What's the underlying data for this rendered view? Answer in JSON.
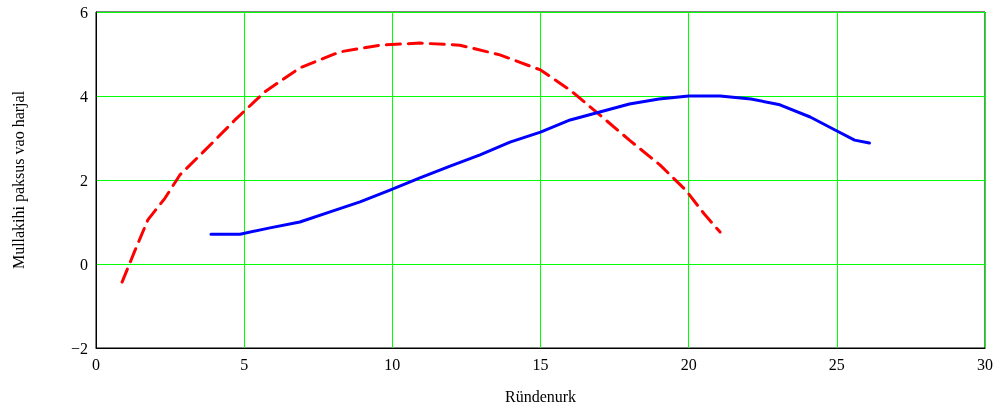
{
  "chart_data": {
    "type": "line",
    "xlabel": "Ründenurk",
    "ylabel": "Mullakihi paksus vao harjal",
    "xlim": [
      0,
      30
    ],
    "xticks": [
      0,
      5,
      10,
      15,
      20,
      25,
      30
    ],
    "ylim": [
      -2,
      6
    ],
    "yticks": [
      {
        "value": -2,
        "label": "−2"
      },
      0,
      2,
      4,
      6
    ],
    "grid": true,
    "marker": "none",
    "series": [
      {
        "color": "#ff0000",
        "line_style": "dashed",
        "x": [
          0.88,
          1.32,
          1.75,
          2.33,
          2.83,
          3.68,
          4.69,
          5.7,
          6.88,
          8.23,
          9.58,
          10.93,
          12.28,
          13.63,
          15,
          16,
          17,
          18,
          19.03,
          19.9,
          20.55,
          21.06
        ],
        "values": [
          -0.43,
          0.33,
          1.05,
          1.57,
          2.12,
          2.71,
          3.43,
          4.1,
          4.67,
          5.05,
          5.21,
          5.26,
          5.21,
          4.98,
          4.62,
          4.14,
          3.55,
          2.95,
          2.36,
          1.76,
          1.17,
          0.76
        ]
      },
      {
        "color": "#0000ff",
        "line_style": "solid",
        "x": [
          3.88,
          4.86,
          5.87,
          6.88,
          7.9,
          8.91,
          9.92,
          10.93,
          11.95,
          12.96,
          13.97,
          15,
          16,
          17,
          18,
          19,
          20,
          21.06,
          22.1,
          23.08,
          24.1,
          24.94,
          25.6,
          26.1
        ],
        "values": [
          0.71,
          0.71,
          0.86,
          1.0,
          1.24,
          1.48,
          1.76,
          2.05,
          2.33,
          2.6,
          2.9,
          3.14,
          3.43,
          3.62,
          3.81,
          3.93,
          4.0,
          4.0,
          3.93,
          3.79,
          3.5,
          3.19,
          2.95,
          2.88
        ]
      }
    ]
  }
}
